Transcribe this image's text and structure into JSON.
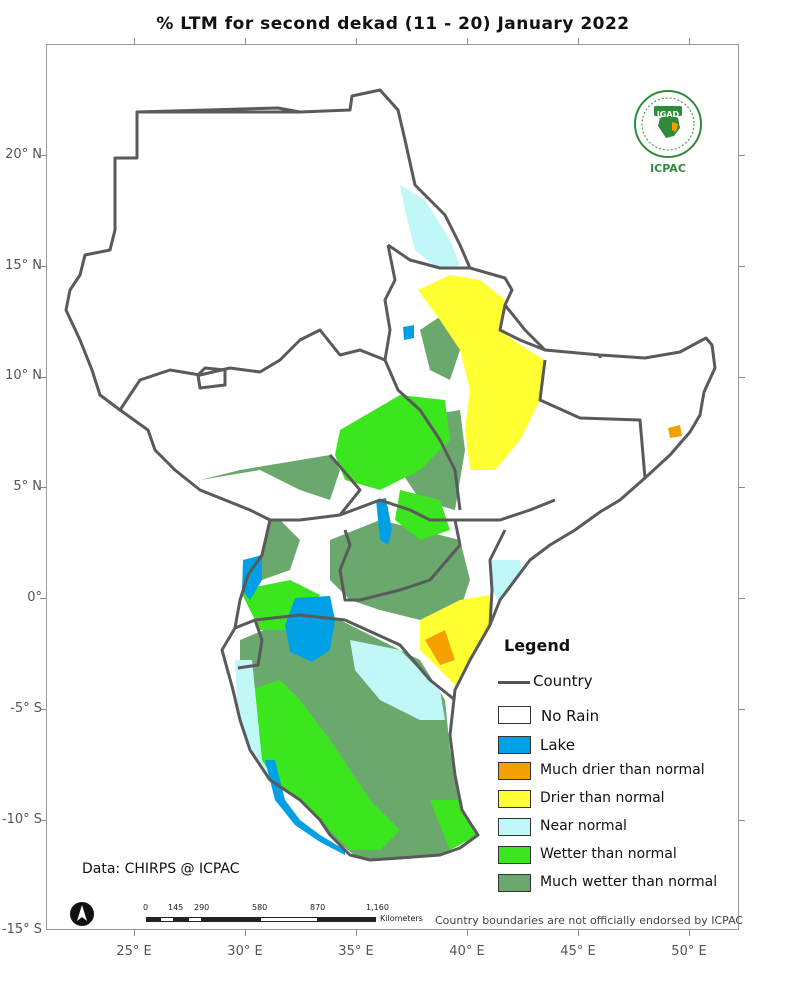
{
  "title": "% LTM for second dekad (11 - 20) January 2022",
  "latitude_labels": [
    "20° N",
    "15° N",
    "10° N",
    "5° N",
    "0°",
    "-5° S",
    "-10° S",
    "-15° S"
  ],
  "longitude_labels": [
    "25° E",
    "30° E",
    "35° E",
    "40° E",
    "45° E",
    "50° E"
  ],
  "logo": {
    "name": "IGAD",
    "sub": "ICPAC"
  },
  "legend": {
    "title": "Legend",
    "country_label": "Country",
    "items": [
      {
        "label": "No Rain",
        "color": "#ffffff"
      },
      {
        "label": "Lake",
        "color": "#00a0e6"
      },
      {
        "label": "Much drier than normal",
        "color": "#f5a000"
      },
      {
        "label": "Drier than normal",
        "color": "#ffff32"
      },
      {
        "label": "Near normal",
        "color": "#c0f7f7"
      },
      {
        "label": "Wetter than normal",
        "color": "#3ce61e"
      },
      {
        "label": "Much wetter than normal",
        "color": "#6aa86e"
      }
    ]
  },
  "data_credit": "Data: CHIRPS @ ICPAC",
  "scalebar": {
    "ticks": [
      "0",
      "145",
      "290",
      "580",
      "870",
      "1,160"
    ],
    "unit": "Kilometers"
  },
  "disclaimer": "Country boundaries are not officially endorsed by ICPAC"
}
